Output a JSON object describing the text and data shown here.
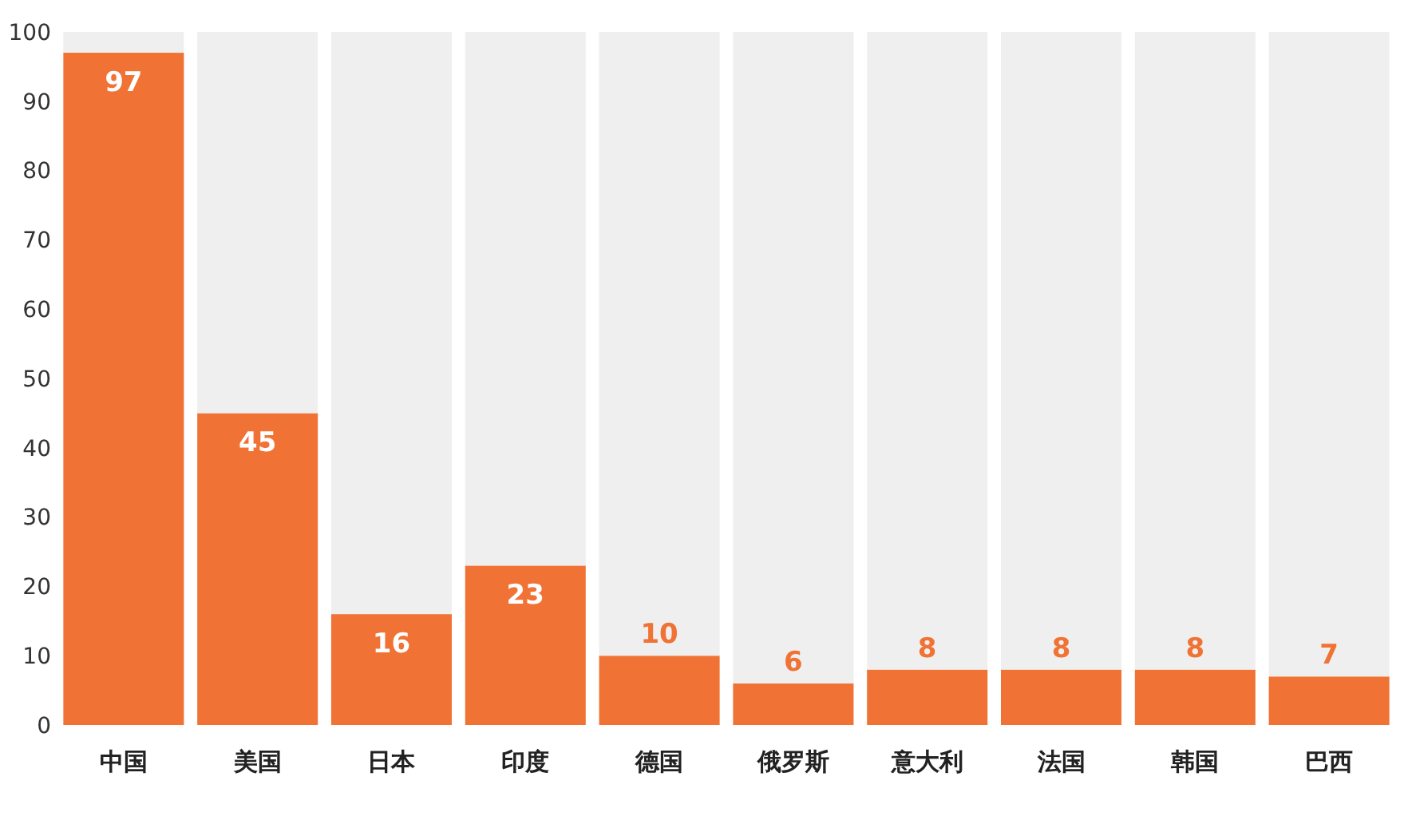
{
  "chart_data": {
    "type": "bar",
    "stacked": true,
    "categories": [
      "中国",
      "美国",
      "日本",
      "印度",
      "德国",
      "俄罗斯",
      "意大利",
      "法国",
      "韩国",
      "巴西"
    ],
    "series": [
      {
        "color": "#f07234",
        "values": [
          97,
          45,
          16,
          23,
          10,
          6,
          8,
          8,
          8,
          7
        ],
        "value_labels": [
          "97",
          "45",
          "16",
          "23",
          "10",
          "6",
          "8",
          "8",
          "8",
          "7"
        ]
      },
      {
        "color": "#efefef",
        "values": [
          3,
          55,
          84,
          77,
          90,
          94,
          92,
          92,
          92,
          93
        ]
      }
    ],
    "ylim": [
      0,
      100
    ],
    "yticks": [
      0,
      10,
      20,
      30,
      40,
      50,
      60,
      70,
      80,
      90,
      100
    ],
    "grid": false
  }
}
